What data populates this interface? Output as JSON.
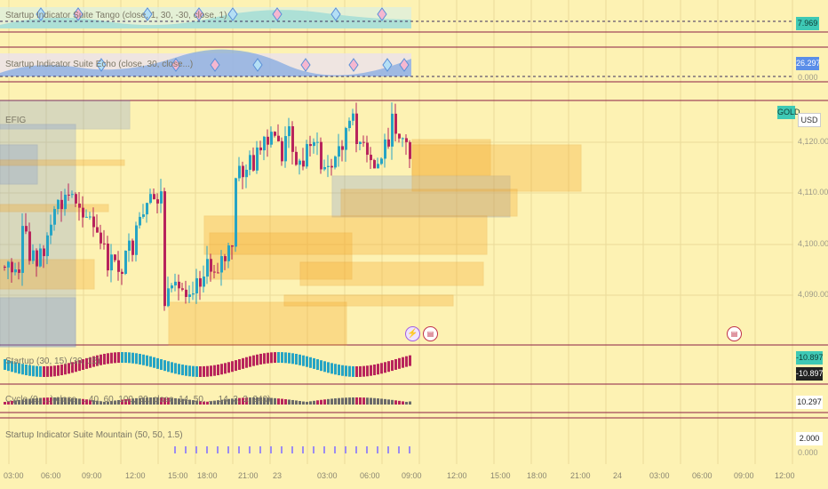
{
  "panes": {
    "tango": {
      "label": "Startup Indicator Suite Tango (close, 1, 30, -30, close, 1)",
      "value": "7.969"
    },
    "echo": {
      "label": "Startup Indicator Suite Echo (close, 30, close...)",
      "value": "26.297",
      "axis": "0.000"
    },
    "oscillator": {
      "label": "Startup (30, 15) (30, 15)",
      "value_top": "-10.897",
      "value_bottom": "-10.897"
    },
    "histogram": {
      "label": "Cycle (9, ...) close ... 40, 60, 100, 20, close, 14, 50, ... 14, 3, 3, 240)",
      "value": "10.297"
    },
    "mountain": {
      "label": "Startup Indicator Suite Mountain (50, 50, 1.5)",
      "value": "2.000",
      "axis": "0.000"
    }
  },
  "main": {
    "symbol_badge": "GOLD",
    "currency": "USD",
    "price_axis": [
      "4,120.000",
      "4,110.000",
      "4,100.000",
      "4,090.000"
    ],
    "box_label": "EFIG"
  },
  "time_axis": [
    "03:00",
    "06:00",
    "09:00",
    "12:00",
    "15:00",
    "18:00",
    "21:00",
    "23",
    "03:00",
    "06:00",
    "09:00",
    "12:00",
    "15:00",
    "18:00",
    "21:00",
    "24",
    "03:00",
    "06:00",
    "09:00",
    "12:00"
  ],
  "colors": {
    "background": "#fdf2b3",
    "bull": "#26a4c4",
    "bear": "#b8245c",
    "separator": "#8b1d45",
    "zone_orange": "#f5a623",
    "zone_blue": "#6c8fd8",
    "tag_tango": "#3ec9b5",
    "tag_echo": "#5b8ee8"
  },
  "icons": {
    "lightning": "lightning-event-icon",
    "flag": "us-flag-icon"
  }
}
